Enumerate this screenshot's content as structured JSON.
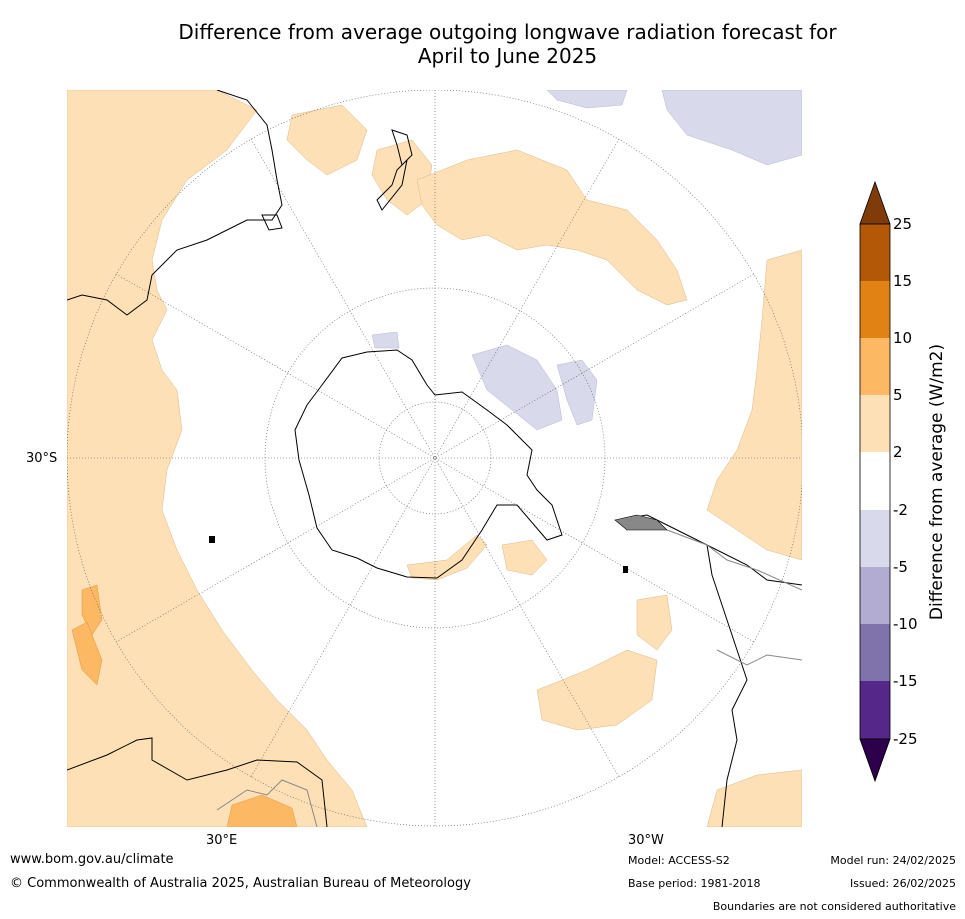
{
  "title": {
    "line1": "Difference from average outgoing longwave radiation forecast for",
    "line2": "April to June 2025"
  },
  "map_labels": {
    "lat": "30°S",
    "lon_east": "30°E",
    "lon_west": "30°W"
  },
  "legend": {
    "label": "Difference from average (W/m2)",
    "ticks": [
      "25",
      "15",
      "10",
      "5",
      "2",
      "-2",
      "-5",
      "-10",
      "-15",
      "-25"
    ],
    "colors": {
      "over": "#7f3b08",
      "b15_25": "#b35806",
      "b10_15": "#e08214",
      "b5_10": "#fdb863",
      "b2_5": "#fee0b6",
      "neutral": "#ffffff",
      "m2_5": "#d8daeb",
      "m5_10": "#b2abd2",
      "m10_15": "#8073ac",
      "m15_25": "#542788",
      "under": "#2d004b"
    }
  },
  "footer": {
    "website": "www.bom.gov.au/climate",
    "copyright": "© Commonwealth of Australia 2025, Australian Bureau of Meteorology",
    "model": "Model: ACCESS-S2",
    "base_period": "Base period: 1981-2018",
    "model_run": "Model run: 24/02/2025",
    "issued": "Issued: 26/02/2025",
    "disclaimer": "Boundaries are not considered authoritative"
  }
}
